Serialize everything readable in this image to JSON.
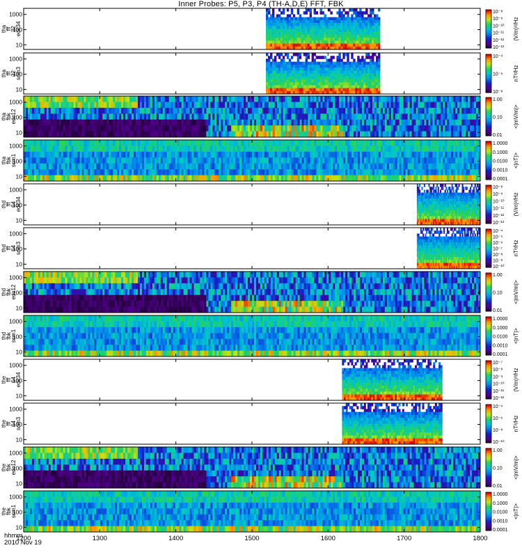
{
  "chart_data": {
    "type": "heatmap",
    "title": "Inner Probes: P5, P3, P4 (TH-A,D,E) FFT, FBK",
    "date_label": "2010 Nov 19",
    "x_unit_label": "hhmm",
    "x_ticks": [
      "1200",
      "1300",
      "1400",
      "1500",
      "1600",
      "1700",
      "1800"
    ],
    "xlim": [
      "1200",
      "1800"
    ],
    "panels": [
      {
        "probe": "tha",
        "ylabel": [
          "tha",
          "fff",
          "32",
          "edc34"
        ],
        "kind": "fft",
        "yscale": "log",
        "yticks": [
          "10",
          "100",
          "1000"
        ],
        "colorbar_label": "(V/m)²/Hz",
        "colorbar_ticks": [
          "10⁻¹³",
          "10⁻¹²",
          "10⁻¹¹",
          "10⁻¹⁰",
          "10⁻⁹",
          "10⁻⁸"
        ],
        "data_start": "1511",
        "data_end": "1641"
      },
      {
        "probe": "tha",
        "ylabel": [
          "tha",
          "fff",
          "32",
          "scm3"
        ],
        "kind": "fft",
        "yscale": "log",
        "yticks": [
          "10",
          "100",
          "1000"
        ],
        "colorbar_label": "nT²/Hz",
        "colorbar_ticks": [
          "10⁻⁸",
          "10⁻⁶",
          "10⁻⁴"
        ],
        "data_start": "1511",
        "data_end": "1641"
      },
      {
        "probe": "tha",
        "ylabel": [
          "tha",
          "fbk",
          "edc12"
        ],
        "kind": "fbk",
        "yscale": "log",
        "yticks": [
          "10",
          "100",
          "1000"
        ],
        "colorbar_label": "<|mV/m|>",
        "colorbar_ticks": [
          "0.01",
          "0.10",
          "1.00"
        ],
        "data_start": "1200",
        "data_end": "1800"
      },
      {
        "probe": "tha",
        "ylabel": [
          "tha",
          "fbk",
          "scm1"
        ],
        "kind": "fbk",
        "yscale": "log",
        "yticks": [
          "10",
          "100",
          "1000"
        ],
        "colorbar_label": "<|nT|>",
        "colorbar_ticks": [
          "0.0001",
          "0.0010",
          "0.0100",
          "0.1000",
          "1.0000"
        ],
        "data_start": "1200",
        "data_end": "1800"
      },
      {
        "probe": "thd",
        "ylabel": [
          "thd",
          "fff",
          "64",
          "edc34"
        ],
        "kind": "fft",
        "yscale": "log",
        "yticks": [
          "10",
          "100",
          "1000"
        ],
        "colorbar_label": "(V/m)²/Hz",
        "colorbar_ticks": [
          "10⁻¹³",
          "10⁻¹²",
          "10⁻¹¹",
          "10⁻¹⁰",
          "10⁻⁹",
          "10⁻⁸"
        ],
        "data_start": "1710",
        "data_end": "1800"
      },
      {
        "probe": "thd",
        "ylabel": [
          "thd",
          "fff",
          "64",
          "scm3"
        ],
        "kind": "fft",
        "yscale": "log",
        "yticks": [
          "10",
          "100",
          "1000"
        ],
        "colorbar_label": "nT²/Hz",
        "colorbar_ticks": [
          "10⁻¹⁰",
          "10⁻⁹",
          "10⁻⁸",
          "10⁻⁷",
          "10⁻⁶",
          "10⁻⁵",
          "10⁻⁴"
        ],
        "data_start": "1710",
        "data_end": "1800"
      },
      {
        "probe": "thd",
        "ylabel": [
          "thd",
          "fbk",
          "edc12"
        ],
        "kind": "fbk",
        "yscale": "log",
        "yticks": [
          "10",
          "100",
          "1000"
        ],
        "colorbar_label": "<|mV/m|>",
        "colorbar_ticks": [
          "0.01",
          "0.10",
          "1.00"
        ],
        "data_start": "1200",
        "data_end": "1800"
      },
      {
        "probe": "thd",
        "ylabel": [
          "thd",
          "fbk",
          "scm1"
        ],
        "kind": "fbk",
        "yscale": "log",
        "yticks": [
          "10",
          "100",
          "1000"
        ],
        "colorbar_label": "<|nT|>",
        "colorbar_ticks": [
          "0.0001",
          "0.0010",
          "0.0100",
          "0.1000",
          "1.0000"
        ],
        "data_start": "1200",
        "data_end": "1800"
      },
      {
        "probe": "the",
        "ylabel": [
          "the",
          "fff",
          "64",
          "edc34"
        ],
        "kind": "fft",
        "yscale": "log",
        "yticks": [
          "10",
          "100",
          "1000"
        ],
        "colorbar_label": "(V/m)²/Hz",
        "colorbar_ticks": [
          "10⁻¹²",
          "10⁻¹¹",
          "10⁻¹⁰",
          "10⁻⁹",
          "10⁻⁸",
          "10⁻⁷"
        ],
        "data_start": "1611",
        "data_end": "1730"
      },
      {
        "probe": "the",
        "ylabel": [
          "the",
          "fff",
          "64",
          "scm3"
        ],
        "kind": "fft",
        "yscale": "log",
        "yticks": [
          "10",
          "100",
          "1000"
        ],
        "colorbar_label": "nT²/Hz",
        "colorbar_ticks": [
          "10⁻¹⁰",
          "10⁻⁸",
          "10⁻⁶",
          "10⁻⁴"
        ],
        "data_start": "1611",
        "data_end": "1730"
      },
      {
        "probe": "the",
        "ylabel": [
          "the",
          "fbk",
          "edc12"
        ],
        "kind": "fbk",
        "yscale": "log",
        "yticks": [
          "10",
          "100",
          "1000"
        ],
        "colorbar_label": "<|mV/m|>",
        "colorbar_ticks": [
          "0.01",
          "0.10",
          "1.00"
        ],
        "data_start": "1200",
        "data_end": "1800"
      },
      {
        "probe": "the",
        "ylabel": [
          "the",
          "fbk",
          "scm1"
        ],
        "kind": "fbk",
        "yscale": "log",
        "yticks": [
          "10",
          "100",
          "1000"
        ],
        "colorbar_label": "<|nT|>",
        "colorbar_ticks": [
          "0.0001",
          "0.0010",
          "0.0100",
          "0.1000",
          "1.0000"
        ],
        "data_start": "1200",
        "data_end": "1800"
      }
    ]
  }
}
